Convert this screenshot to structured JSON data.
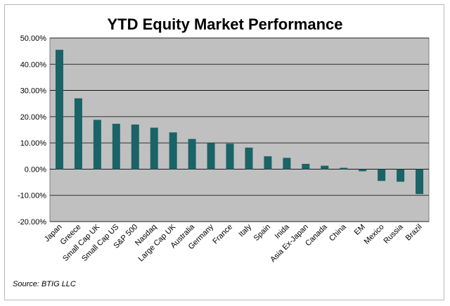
{
  "chart_data": {
    "type": "bar",
    "title": "YTD Equity Market Performance",
    "categories": [
      "Japan",
      "Greece",
      "Small Cap UK",
      "Small Cap US",
      "S&P 500",
      "Nasdaq",
      "Large Cap UK",
      "Australia",
      "Germany",
      "France",
      "Italy",
      "Spain",
      "Inida",
      "Asia Ex-Japan",
      "Canada",
      "China",
      "EM",
      "Mexico",
      "Russia",
      "Brazil"
    ],
    "values": [
      45.5,
      27.0,
      18.8,
      17.3,
      17.0,
      15.8,
      14.0,
      11.5,
      10.0,
      9.7,
      8.2,
      4.9,
      4.3,
      2.0,
      1.3,
      0.5,
      -0.8,
      -4.5,
      -4.8,
      -9.5
    ],
    "ylim": [
      -20,
      50
    ],
    "yticks": [
      "-20.00%",
      "-10.00%",
      "0.00%",
      "10.00%",
      "20.00%",
      "30.00%",
      "40.00%",
      "50.00%"
    ],
    "ytick_values": [
      -20,
      -10,
      0,
      10,
      20,
      30,
      40,
      50
    ],
    "xlabel": "",
    "ylabel": "",
    "grid": true,
    "colors": {
      "bar": "#1a6366",
      "plot_bg": "#c0c0c0",
      "grid": "#000000"
    }
  },
  "source": "Source: BTIG LLC"
}
